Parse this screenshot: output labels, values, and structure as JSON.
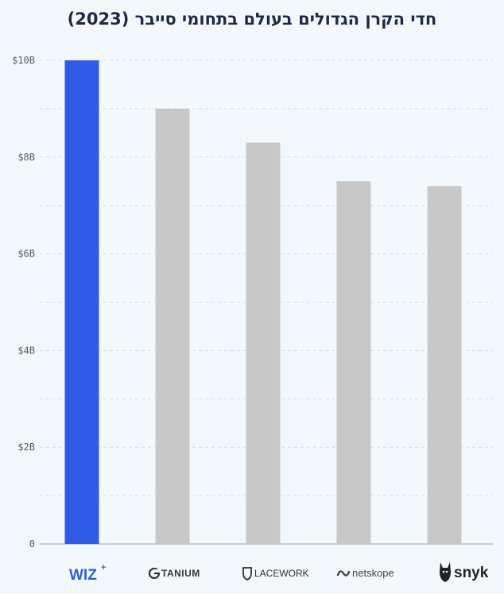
{
  "chart_data": {
    "type": "bar",
    "title": "חדי הקרן הגדולים בעולם בתחומי סייבר (2023)",
    "categories": [
      "WIZ",
      "TANIUM",
      "LACEWORK",
      "netskope",
      "snyk"
    ],
    "values": [
      10.0,
      9.0,
      8.3,
      7.5,
      7.4
    ],
    "y_ticks": [
      0,
      2,
      4,
      6,
      8,
      10
    ],
    "y_tick_labels": [
      "0",
      "$2B",
      "$4B",
      "$6B",
      "$8B",
      "$10B"
    ],
    "ylim": [
      0,
      10
    ],
    "grid": true,
    "colors": {
      "highlight": "#2f5be7",
      "default": "#c8c8c8",
      "grid": "#d4dae2",
      "axis": "#9aa0a8"
    }
  },
  "logos": {
    "wiz": {
      "text": "WIZ",
      "mark": "+",
      "color": "#2f5be7"
    },
    "tanium": {
      "text": "TANIUM",
      "icon": "tanium-icon",
      "color": "#333333"
    },
    "lacework": {
      "text": "LACEWORK",
      "icon": "shield-icon",
      "color": "#333333"
    },
    "netskope": {
      "text": "netskope",
      "icon": "netskope-wave-icon",
      "color": "#444444"
    },
    "snyk": {
      "text": "snyk",
      "icon": "snyk-dog-icon",
      "color": "#222222"
    }
  }
}
